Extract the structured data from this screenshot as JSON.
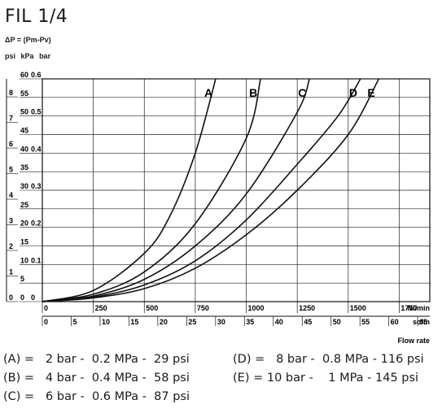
{
  "header": {
    "title": "FIL 1/4",
    "formula": "ΔP = (Pm-Pv)",
    "unit_psi": "psi",
    "unit_kpa": "kPa",
    "unit_bar": "bar"
  },
  "chart_data": {
    "type": "line",
    "title": "FIL 1/4",
    "xlabel": "Flow rate",
    "ylabel": "ΔP = (Pm-Pv)",
    "x_units": [
      "Nl/min",
      "scfm"
    ],
    "y_units": [
      "psi",
      "kPa",
      "bar"
    ],
    "xlim": [
      0,
      1900
    ],
    "ylim_kpa": [
      0,
      60
    ],
    "x_ticks_nlmin": [
      "0",
      "250",
      "500",
      "750",
      "1000",
      "1250",
      "1500",
      "1750"
    ],
    "x_unit_label_nlmin": "Nl/min",
    "x_ticks_scfm": [
      "0",
      "5",
      "10",
      "15",
      "20",
      "25",
      "30",
      "35",
      "40",
      "45",
      "50",
      "55",
      "60",
      "65"
    ],
    "x_unit_label_scfm": "scfm",
    "y_ticks_psi": [
      "0",
      "1",
      "2",
      "3",
      "4",
      "5",
      "6",
      "7",
      "8"
    ],
    "y_ticks_kpa": [
      "0",
      "5",
      "10",
      "15",
      "20",
      "25",
      "30",
      "35",
      "40",
      "45",
      "50",
      "55",
      "60"
    ],
    "y_ticks_bar": [
      "0",
      "0.1",
      "0.2",
      "0.3",
      "0.4",
      "0.5",
      "0.6"
    ],
    "grid": true,
    "series": [
      {
        "name": "A",
        "x": [
          0,
          250,
          500,
          625,
          750,
          850
        ],
        "y": [
          0,
          3,
          13,
          23,
          40,
          60
        ]
      },
      {
        "name": "B",
        "x": [
          0,
          250,
          500,
          750,
          1000,
          1070
        ],
        "y": [
          0,
          2,
          8,
          21,
          44,
          60
        ]
      },
      {
        "name": "C",
        "x": [
          0,
          250,
          500,
          750,
          1000,
          1250,
          1310
        ],
        "y": [
          0,
          1.5,
          6,
          15,
          29,
          51,
          60
        ]
      },
      {
        "name": "D",
        "x": [
          0,
          250,
          500,
          750,
          1000,
          1250,
          1450,
          1560
        ],
        "y": [
          0,
          1.2,
          4.5,
          11,
          22,
          37,
          50,
          60
        ]
      },
      {
        "name": "E",
        "x": [
          0,
          250,
          500,
          750,
          1000,
          1250,
          1500,
          1650
        ],
        "y": [
          0,
          1,
          3.5,
          9,
          18,
          30,
          45,
          60
        ]
      }
    ]
  },
  "legend": {
    "rows": [
      "(A) =   2 bar -  0.2 MPa -  29 psi",
      "(B) =   4 bar -  0.4 MPa -  58 psi",
      "(C) =   6 bar -  0.6 MPa -  87 psi",
      "(D) =   8 bar -  0.8 MPa - 116 psi",
      "(E) = 10 bar -    1 MPa - 145 psi"
    ]
  }
}
